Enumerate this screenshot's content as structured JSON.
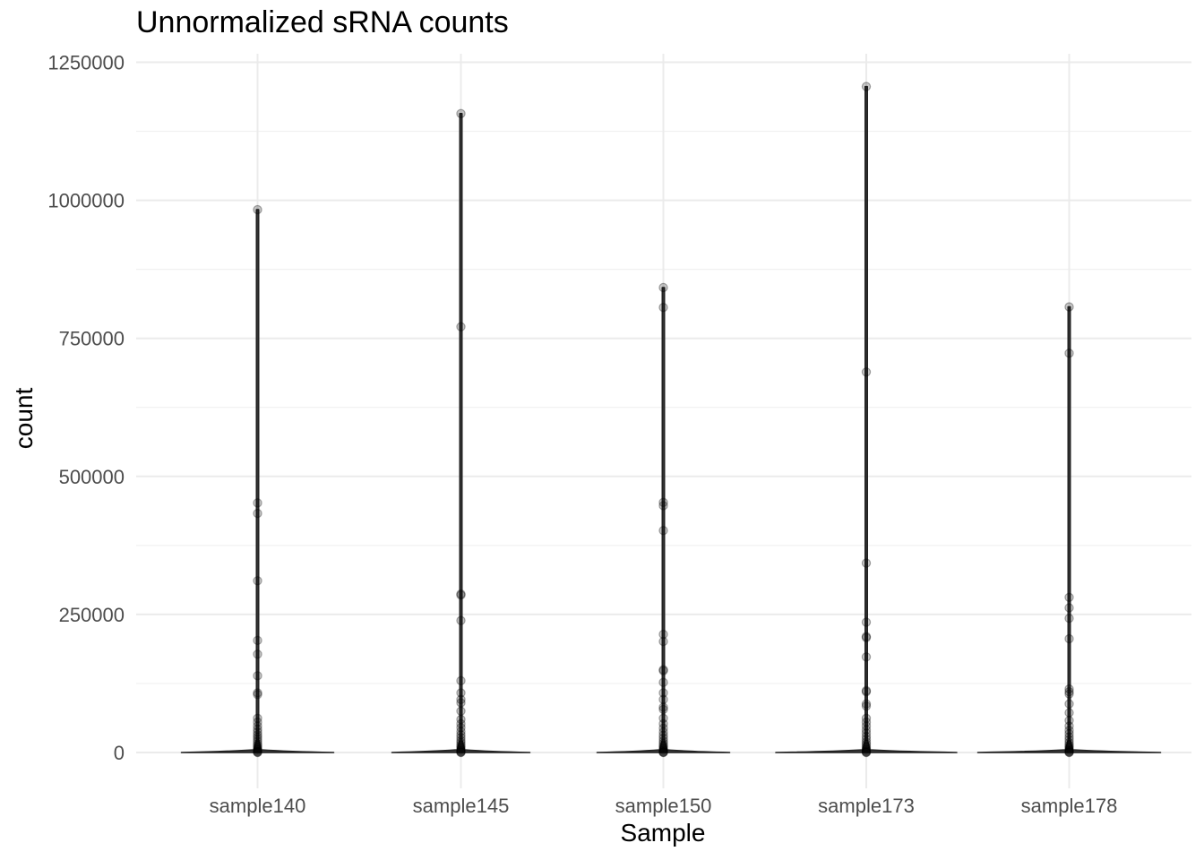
{
  "chart_data": {
    "type": "violin",
    "title": "Unnormalized sRNA counts",
    "xlabel": "Sample",
    "ylabel": "count",
    "ylim": [
      -50000,
      1270000
    ],
    "yticks": [
      0,
      250000,
      500000,
      750000,
      1000000,
      1250000
    ],
    "ytick_labels": [
      "0",
      "250000",
      "500000",
      "750000",
      "1000000",
      "1250000"
    ],
    "grid": true,
    "categories": [
      "sample140",
      "sample145",
      "sample150",
      "sample173",
      "sample178"
    ],
    "series": [
      {
        "category": "sample140",
        "max": 983000,
        "points": [
          983000,
          452000,
          433000,
          311000,
          203000,
          178000,
          139000,
          108000,
          105000,
          62000,
          55000,
          48000,
          42000,
          37000,
          32000,
          28000,
          24000,
          20000,
          16000,
          13000,
          10000,
          7000,
          5000,
          3000,
          1500,
          500,
          0
        ]
      },
      {
        "category": "sample145",
        "max": 1157000,
        "points": [
          1157000,
          771000,
          287000,
          285000,
          239000,
          130000,
          108000,
          96000,
          90000,
          75000,
          60000,
          52000,
          45000,
          38000,
          32000,
          27000,
          22000,
          18000,
          14000,
          11000,
          8000,
          5000,
          3000,
          1500,
          500,
          0
        ]
      },
      {
        "category": "sample150",
        "max": 842000,
        "points": [
          842000,
          806000,
          453000,
          447000,
          402000,
          214000,
          201000,
          150000,
          148000,
          127000,
          108000,
          96000,
          82000,
          78000,
          62000,
          52000,
          44000,
          37000,
          31000,
          26000,
          21000,
          17000,
          13000,
          10000,
          7000,
          4500,
          2500,
          1000,
          300,
          0
        ]
      },
      {
        "category": "sample173",
        "max": 1206000,
        "points": [
          1206000,
          689000,
          343000,
          236000,
          210000,
          208000,
          173000,
          112000,
          110000,
          88000,
          84000,
          62000,
          55000,
          48000,
          41000,
          35000,
          29000,
          24000,
          19000,
          15000,
          11000,
          8000,
          5000,
          3000,
          1500,
          500,
          0
        ]
      },
      {
        "category": "sample178",
        "max": 807000,
        "points": [
          807000,
          723000,
          281000,
          262000,
          243000,
          206000,
          115000,
          110000,
          106000,
          88000,
          72000,
          58000,
          48000,
          40000,
          34000,
          28000,
          23000,
          18000,
          14000,
          11000,
          8000,
          5000,
          3000,
          1500,
          500,
          0
        ]
      }
    ]
  }
}
